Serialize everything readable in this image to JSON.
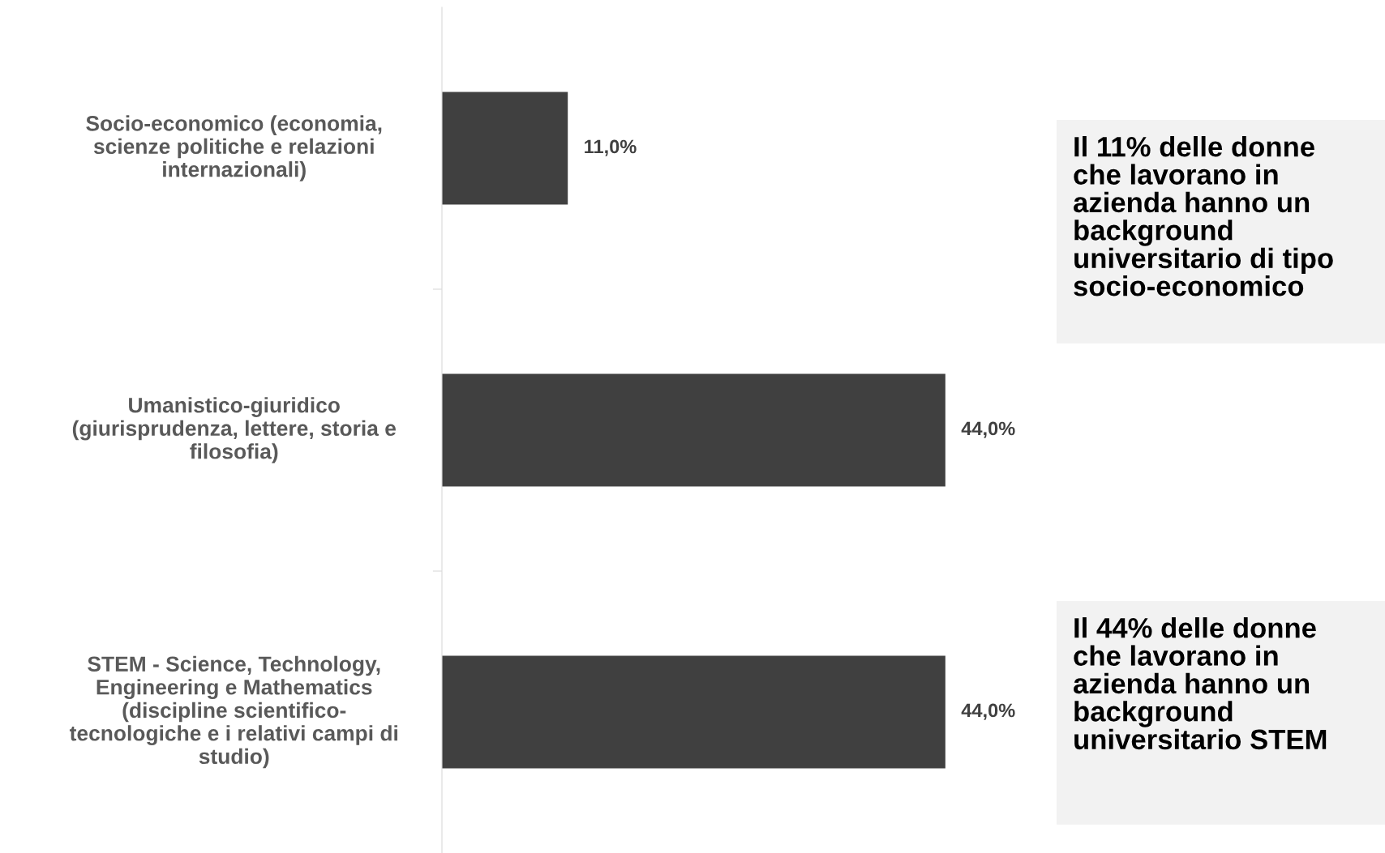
{
  "chart_data": {
    "type": "bar",
    "orientation": "horizontal",
    "categories": [
      "Socio-economico (economia,\nscienze politiche e relazioni\ninternazionali)",
      "Umanistico-giuridico\n(giurisprudenza, lettere, storia e\nfilosofia)",
      "STEM - Science, Technology,\nEngineering e Mathematics\n(discipline scientifico-\ntecnologiche e i relativi campi di\nstudio)"
    ],
    "values": [
      11.0,
      44.0,
      44.0
    ],
    "value_labels": [
      "11,0%",
      "44,0%",
      "44,0%"
    ],
    "color": "#404040",
    "grid": false,
    "annotations": [
      "Il 11% delle donne\nche lavorano in\nazienda hanno un\nbackground\nuniversitario di tipo\nsocio-economico",
      "Il 44% delle donne\nche lavorano in\nazienda hanno un\nbackground\nuniversitario STEM"
    ]
  }
}
